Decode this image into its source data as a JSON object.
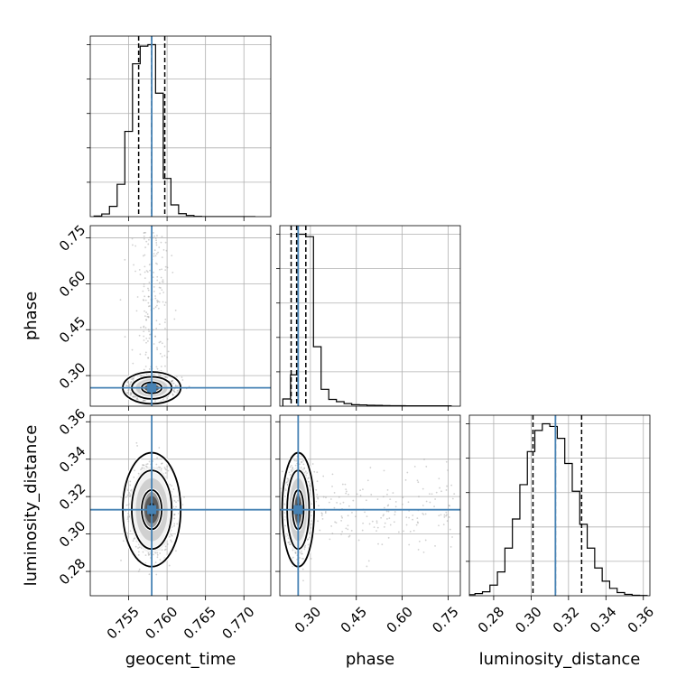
{
  "chart_data": {
    "type": "corner",
    "parameters": [
      "geocent_time",
      "phase",
      "luminosity_distance"
    ],
    "truth": {
      "geocent_time": 0.758,
      "phase": 0.26,
      "luminosity_distance": 0.313
    },
    "quantiles": {
      "geocent_time": [
        0.7563,
        0.758,
        0.7597
      ],
      "phase": [
        0.237,
        0.255,
        0.285
      ],
      "luminosity_distance": [
        0.301,
        0.313,
        0.327
      ]
    },
    "axes": {
      "geocent_time": {
        "range": [
          0.75,
          0.7735
        ],
        "ticks": [
          0.755,
          0.76,
          0.765,
          0.77
        ],
        "tick_labels": [
          "0.755",
          "0.760",
          "0.765",
          "0.770"
        ]
      },
      "phase": {
        "range": [
          0.2,
          0.79
        ],
        "ticks": [
          0.3,
          0.45,
          0.6,
          0.75
        ],
        "tick_labels": [
          "0.30",
          "0.45",
          "0.60",
          "0.75"
        ]
      },
      "luminosity_distance": {
        "range": [
          0.267,
          0.3635
        ],
        "ticks": [
          0.28,
          0.3,
          0.32,
          0.34,
          0.36
        ],
        "tick_labels": [
          "0.28",
          "0.30",
          "0.32",
          "0.34",
          "0.36"
        ]
      }
    },
    "histograms": {
      "geocent_time": {
        "bin_edges": [
          0.7505,
          0.7515,
          0.7525,
          0.7535,
          0.7545,
          0.7555,
          0.7565,
          0.7575,
          0.7585,
          0.7595,
          0.7605,
          0.7615,
          0.7625,
          0.7635,
          0.7645,
          0.7655,
          0.7665,
          0.7675,
          0.7685,
          0.7695,
          0.7705,
          0.7715
        ],
        "counts": [
          2,
          9,
          35,
          110,
          290,
          520,
          580,
          585,
          420,
          130,
          40,
          10,
          4,
          1,
          0,
          0,
          0,
          0,
          0,
          0,
          0
        ]
      },
      "phase": {
        "bin_edges": [
          0.21,
          0.235,
          0.26,
          0.285,
          0.31,
          0.335,
          0.36,
          0.385,
          0.41,
          0.435,
          0.46,
          0.485,
          0.51,
          0.535,
          0.56,
          0.585,
          0.61,
          0.635,
          0.66,
          0.685,
          0.71,
          0.735,
          0.76
        ],
        "counts": [
          45,
          195,
          1070,
          1055,
          370,
          105,
          42,
          28,
          16,
          9,
          8,
          6,
          5,
          4,
          3,
          3,
          2,
          2,
          2,
          2,
          2,
          2
        ]
      },
      "luminosity_distance": {
        "bin_edges": [
          0.266,
          0.27,
          0.274,
          0.278,
          0.282,
          0.286,
          0.29,
          0.294,
          0.298,
          0.302,
          0.306,
          0.31,
          0.314,
          0.318,
          0.322,
          0.326,
          0.33,
          0.334,
          0.338,
          0.342,
          0.346,
          0.35,
          0.354,
          0.358,
          0.362
        ],
        "counts": [
          4,
          8,
          15,
          40,
          90,
          180,
          290,
          420,
          545,
          625,
          650,
          640,
          595,
          500,
          395,
          270,
          180,
          105,
          55,
          28,
          12,
          5,
          2,
          1
        ]
      }
    },
    "contour_levels": [
      "39.3%",
      "86.5%",
      "98.9%"
    ],
    "grid": true,
    "legend": "none"
  },
  "colors": {
    "truth": "#4682b4",
    "lines": "#000000",
    "grid": "#b0b0b0",
    "scatter": "#9a9a9a"
  }
}
